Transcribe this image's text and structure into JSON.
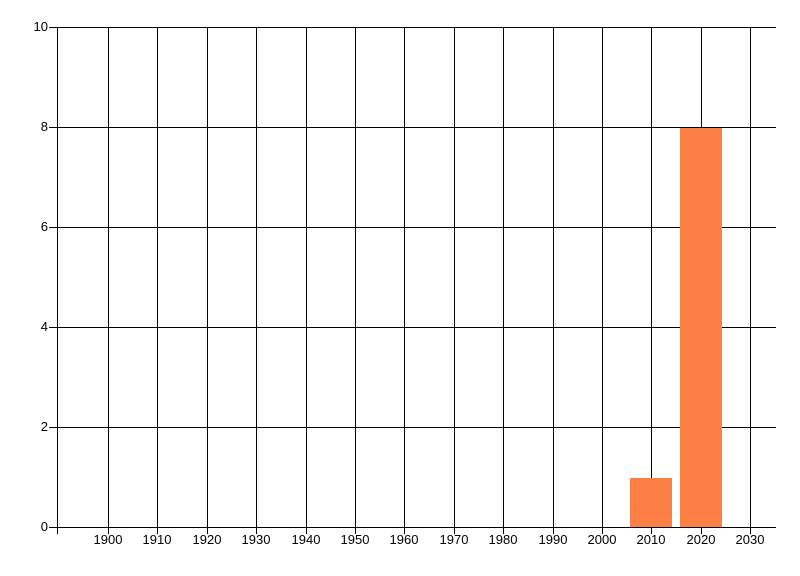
{
  "chart_data": {
    "type": "bar",
    "title": "",
    "xlabel": "",
    "ylabel": "",
    "x": [
      2010,
      2020
    ],
    "values": [
      1,
      8
    ],
    "x_ticks": [
      1900,
      1910,
      1920,
      1930,
      1940,
      1950,
      1960,
      1970,
      1980,
      1990,
      2000,
      2010,
      2020,
      2030
    ],
    "y_ticks": [
      0,
      2,
      4,
      6,
      8,
      10
    ],
    "xlim": [
      1889.7,
      2035.2
    ],
    "ylim": [
      0,
      10
    ],
    "grid": true,
    "legend": "none",
    "bar_width_years": 8.5,
    "bar_color": "#FC7F43",
    "grid_color": "#000000",
    "axis_text_color": "#000000",
    "background_color": "#FFFFFF"
  }
}
